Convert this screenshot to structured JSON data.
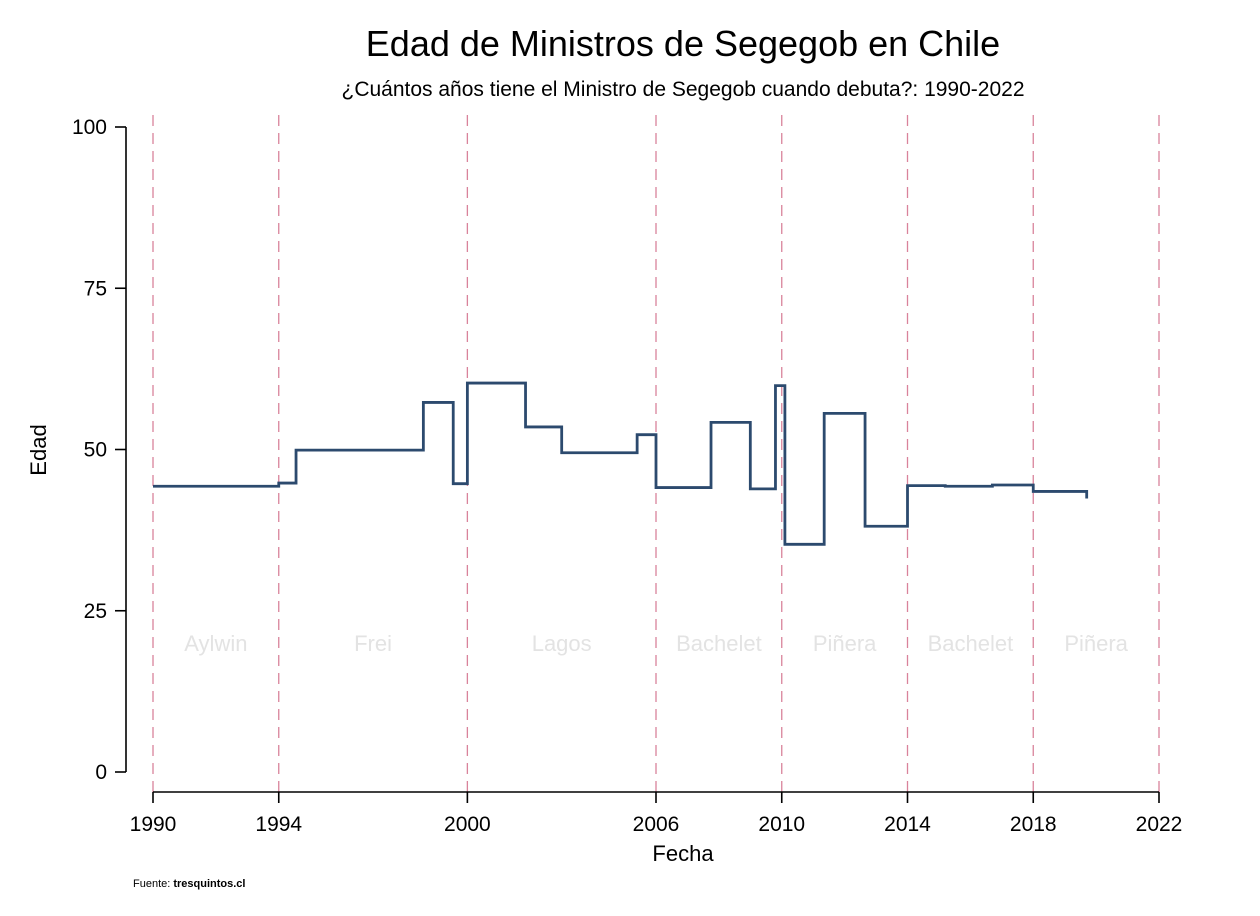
{
  "chart_data": {
    "type": "line",
    "step": true,
    "title": "Edad de Ministros de Segegob en Chile",
    "subtitle": "¿Cuántos años tiene el Ministro de Segegob cuando debuta?: 1990-2022",
    "xlabel": "Fecha",
    "ylabel": "Edad",
    "xlim": [
      1990,
      2022
    ],
    "ylim": [
      0,
      100
    ],
    "x_ticks": [
      1990,
      1994,
      2000,
      2006,
      2010,
      2014,
      2018,
      2022
    ],
    "y_ticks": [
      0,
      25,
      50,
      75,
      100
    ],
    "vlines": [
      1990,
      1994,
      2000,
      2006,
      2010,
      2014,
      2018,
      2022
    ],
    "eras": [
      {
        "label": "Aylwin",
        "x": 1992
      },
      {
        "label": "Frei",
        "x": 1997
      },
      {
        "label": "Lagos",
        "x": 2003
      },
      {
        "label": "Bachelet",
        "x": 2008
      },
      {
        "label": "Piñera",
        "x": 2012
      },
      {
        "label": "Bachelet",
        "x": 2016
      },
      {
        "label": "Piñera",
        "x": 2020
      },
      {
        "label": "",
        "x": 2022
      }
    ],
    "era_label_y": 20,
    "series": [
      {
        "color": "#2c4a6e",
        "x": [
          1990,
          1994,
          1994.55,
          1998.6,
          1999.55,
          2000,
          2001.85,
          2003,
          2005.4,
          2006,
          2007.75,
          2009,
          2009.8,
          2010.1,
          2011.35,
          2012.65,
          2014,
          2015.2,
          2016.7,
          2018,
          2019.7
        ],
        "y": [
          44.3,
          44.8,
          49.9,
          57.3,
          44.7,
          60.3,
          53.5,
          49.5,
          52.3,
          44.1,
          54.2,
          43.9,
          59.9,
          35.3,
          55.6,
          38.1,
          44.4,
          44.3,
          44.5,
          43.5,
          42.4
        ]
      }
    ],
    "vline_color": "#d9839b",
    "source_prefix": "Fuente: ",
    "source_name": "tresquintos.cl"
  }
}
